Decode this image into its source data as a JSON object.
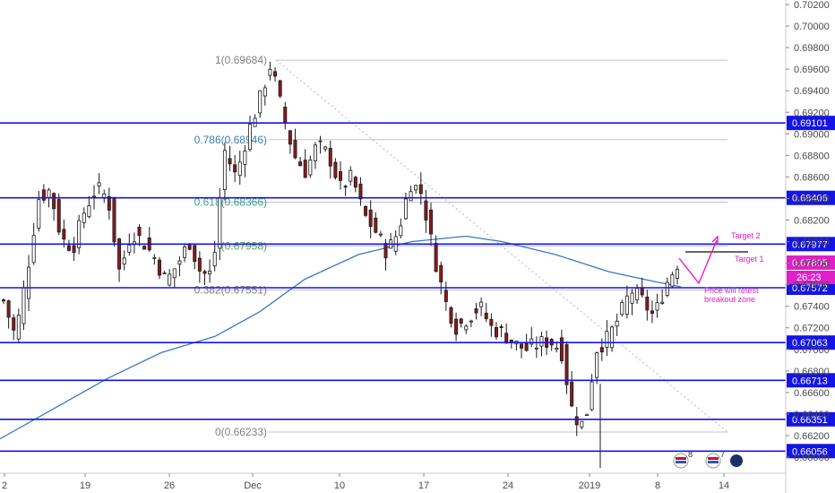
{
  "colors": {
    "up_candle": "#ffffff",
    "down_candle": "#8b1a1a",
    "wick": "#1a1a1a",
    "horizontal_level": "#1414e6",
    "moving_average": "#3a78c2",
    "fib_line": "#c4c4c4",
    "annotation": "#e01fc8",
    "fib_label_top": "#808080",
    "fib_label_786": "#3a7fb0",
    "fib_label_618": "#3aa08c",
    "fib_label_500": "#5aa05a",
    "fib_label_382": "#808080",
    "fib_label_0": "#808080"
  },
  "chart_data": {
    "type": "candlestick",
    "ylim": [
      0.6589,
      0.7023
    ],
    "y_ticks": [
      "0.70200",
      "0.70000",
      "0.69800",
      "0.69600",
      "0.69400",
      "0.69200",
      "0.69000",
      "0.68800",
      "0.68600",
      "0.68400",
      "0.68200",
      "0.68000",
      "0.67800",
      "0.67600",
      "0.67400",
      "0.67200",
      "0.67000",
      "0.66800",
      "0.66600",
      "0.66400",
      "0.66200",
      "0.66000"
    ],
    "x_ticks": [
      "2",
      "19",
      "26",
      "Dec",
      "10",
      "17",
      "24",
      "2019",
      "8",
      "14"
    ],
    "horizontal_levels": [
      "0.69101",
      "0.68406",
      "0.67977",
      "0.67572",
      "0.67063",
      "0.66713",
      "0.66351",
      "0.66056"
    ],
    "current_price": "0.67805",
    "countdown": "26:23",
    "fibonacci": [
      {
        "label": "1(0.69684)",
        "ratio": "1",
        "value": 0.69684
      },
      {
        "label": "0.786(0.68946)",
        "ratio": "0.786",
        "value": 0.68946
      },
      {
        "label": "0.618(0.68366)",
        "ratio": "0.618",
        "value": 0.68366
      },
      {
        "label": "0.5(0.67958)",
        "ratio": "0.5",
        "value": 0.67958
      },
      {
        "label": "0.382(0.67551)",
        "ratio": "0.382",
        "value": 0.67551
      },
      {
        "label": "0(0.66233)",
        "ratio": "0",
        "value": 0.66233
      }
    ],
    "fib_visible_labels": [
      "1(0.69684)",
      "0.786(0.68946)",
      "0.618(0.68366)",
      "(0.67958)",
      "0.382(0.67551)",
      "0(0.66233)"
    ],
    "annotations": [
      "Target 2",
      "Target 1",
      "Price will retest",
      "breakout zone"
    ],
    "candles_close_sample": [
      0.6745,
      0.6712,
      0.677,
      0.684,
      0.6848,
      0.6802,
      0.6795,
      0.683,
      0.685,
      0.684,
      0.677,
      0.681,
      0.68,
      0.6785,
      0.6763,
      0.678,
      0.68,
      0.677,
      0.677,
      0.6885,
      0.686,
      0.69,
      0.693,
      0.6965,
      0.692,
      0.688,
      0.6865,
      0.689,
      0.688,
      0.685,
      0.686,
      0.6825,
      0.681,
      0.679,
      0.681,
      0.6855,
      0.6845,
      0.679,
      0.6745,
      0.672,
      0.673,
      0.674,
      0.672,
      0.6715,
      0.6705,
      0.67,
      0.6705,
      0.6708,
      0.67,
      0.664,
      0.6628,
      0.67,
      0.671,
      0.673,
      0.6755,
      0.6745,
      0.673,
      0.676,
      0.678
    ]
  },
  "calendar_icons": {
    "economic_badge": "8",
    "dividends_badge": "7"
  }
}
